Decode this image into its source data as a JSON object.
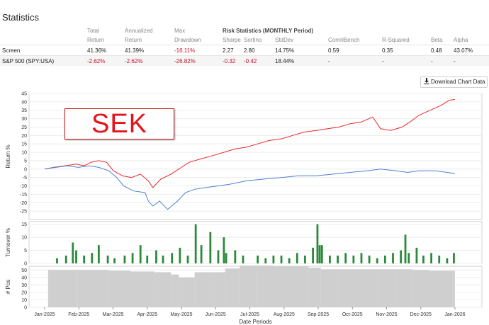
{
  "page": {
    "title": "Statistics",
    "download_button": "Download Chart Data"
  },
  "stats_table": {
    "header_row1": [
      "Total",
      "Annualized",
      "Max",
      "Risk Statistics (MONTHLY Period)"
    ],
    "header_row2": [
      "Return",
      "Return",
      "Drawdown",
      "Sharpe",
      "Sortino",
      "StdDev",
      "CorrelBench",
      "R-Squared",
      "Beta",
      "Alpha"
    ],
    "rows": [
      {
        "name": "Screen",
        "values": [
          "41.36%",
          "41.39%",
          "-16.11%",
          "2.27",
          "2.80",
          "14.75%",
          "0.59",
          "0.35",
          "0.48",
          "43.07%"
        ]
      },
      {
        "name": "S&P 500 (SPY:USA)",
        "values": [
          "-2.62%",
          "-2.62%",
          "-26.82%",
          "-0.32",
          "-0.42",
          "18.44%",
          "-",
          "-",
          "-",
          "-"
        ]
      }
    ]
  },
  "watermark": "SEK",
  "colors": {
    "screen": "#e8262b",
    "benchmark": "#4f7fcf",
    "turnover": "#2a8a3a",
    "positions": "#cfcfcf",
    "negative": "#c8102e"
  },
  "chart_data": [
    {
      "type": "line",
      "ylabel": "Return %",
      "ylim": [
        -30,
        45
      ],
      "yticks": [
        -25,
        -20,
        -15,
        -10,
        -5,
        0,
        5,
        10,
        15,
        20,
        25,
        30,
        35,
        40,
        45
      ],
      "x_start": "2025-01-02",
      "x_end": "2026-01-01",
      "series": [
        {
          "name": "Screen",
          "points": [
            [
              "2025-01-02",
              0
            ],
            [
              "2025-01-10",
              1
            ],
            [
              "2025-01-20",
              2
            ],
            [
              "2025-01-30",
              3
            ],
            [
              "2025-02-06",
              2
            ],
            [
              "2025-02-12",
              4
            ],
            [
              "2025-02-19",
              5
            ],
            [
              "2025-02-26",
              4
            ],
            [
              "2025-03-04",
              -1
            ],
            [
              "2025-03-12",
              -4
            ],
            [
              "2025-03-20",
              -5
            ],
            [
              "2025-03-28",
              -3
            ],
            [
              "2025-04-04",
              -7
            ],
            [
              "2025-04-08",
              -11
            ],
            [
              "2025-04-15",
              -6
            ],
            [
              "2025-04-24",
              -3
            ],
            [
              "2025-05-01",
              0
            ],
            [
              "2025-05-10",
              4
            ],
            [
              "2025-05-20",
              6
            ],
            [
              "2025-05-31",
              8
            ],
            [
              "2025-06-10",
              10
            ],
            [
              "2025-06-20",
              12
            ],
            [
              "2025-06-30",
              13
            ],
            [
              "2025-07-10",
              15
            ],
            [
              "2025-07-20",
              17
            ],
            [
              "2025-07-31",
              18
            ],
            [
              "2025-08-10",
              20
            ],
            [
              "2025-08-20",
              22
            ],
            [
              "2025-08-31",
              23
            ],
            [
              "2025-09-10",
              24
            ],
            [
              "2025-09-20",
              25
            ],
            [
              "2025-09-30",
              27
            ],
            [
              "2025-10-10",
              28
            ],
            [
              "2025-10-20",
              31
            ],
            [
              "2025-10-27",
              24
            ],
            [
              "2025-11-05",
              23
            ],
            [
              "2025-11-15",
              25
            ],
            [
              "2025-11-22",
              28
            ],
            [
              "2025-11-30",
              32
            ],
            [
              "2025-12-10",
              35
            ],
            [
              "2025-12-20",
              38
            ],
            [
              "2025-12-27",
              41
            ],
            [
              "2026-01-01",
              41.4
            ]
          ]
        },
        {
          "name": "S&P 500 (SPY:USA)",
          "points": [
            [
              "2025-01-02",
              0
            ],
            [
              "2025-01-12",
              1
            ],
            [
              "2025-01-22",
              2
            ],
            [
              "2025-02-01",
              1
            ],
            [
              "2025-02-10",
              2
            ],
            [
              "2025-02-19",
              1
            ],
            [
              "2025-02-28",
              -1
            ],
            [
              "2025-03-07",
              -5
            ],
            [
              "2025-03-13",
              -10
            ],
            [
              "2025-03-22",
              -13
            ],
            [
              "2025-04-01",
              -14
            ],
            [
              "2025-04-04",
              -19
            ],
            [
              "2025-04-08",
              -22
            ],
            [
              "2025-04-14",
              -19
            ],
            [
              "2025-04-21",
              -24
            ],
            [
              "2025-04-30",
              -19
            ],
            [
              "2025-05-07",
              -14
            ],
            [
              "2025-05-15",
              -12
            ],
            [
              "2025-05-25",
              -11
            ],
            [
              "2025-06-05",
              -10
            ],
            [
              "2025-06-15",
              -9
            ],
            [
              "2025-06-30",
              -7
            ],
            [
              "2025-07-15",
              -6
            ],
            [
              "2025-07-31",
              -5
            ],
            [
              "2025-08-15",
              -4
            ],
            [
              "2025-08-31",
              -4
            ],
            [
              "2025-09-15",
              -3
            ],
            [
              "2025-09-30",
              -2
            ],
            [
              "2025-10-15",
              -1
            ],
            [
              "2025-10-27",
              0
            ],
            [
              "2025-11-10",
              -1
            ],
            [
              "2025-11-20",
              -2
            ],
            [
              "2025-11-30",
              -1
            ],
            [
              "2025-12-15",
              -1
            ],
            [
              "2025-12-25",
              -2
            ],
            [
              "2026-01-01",
              -2.6
            ]
          ]
        }
      ]
    },
    {
      "type": "bar",
      "ylabel": "Turnover %",
      "ylim": [
        0,
        16
      ],
      "yticks": [
        0,
        5,
        10,
        15
      ],
      "points": [
        [
          "2025-01-13",
          2
        ],
        [
          "2025-01-21",
          3
        ],
        [
          "2025-01-27",
          8
        ],
        [
          "2025-01-30",
          5
        ],
        [
          "2025-02-06",
          3
        ],
        [
          "2025-02-13",
          4
        ],
        [
          "2025-02-19",
          7
        ],
        [
          "2025-02-27",
          3
        ],
        [
          "2025-03-05",
          2
        ],
        [
          "2025-03-14",
          3
        ],
        [
          "2025-03-21",
          4
        ],
        [
          "2025-03-28",
          7
        ],
        [
          "2025-04-03",
          3
        ],
        [
          "2025-04-11",
          5
        ],
        [
          "2025-04-17",
          3
        ],
        [
          "2025-04-25",
          4
        ],
        [
          "2025-05-02",
          6
        ],
        [
          "2025-05-09",
          3
        ],
        [
          "2025-05-16",
          15
        ],
        [
          "2025-05-21",
          7
        ],
        [
          "2025-05-29",
          12
        ],
        [
          "2025-06-05",
          5
        ],
        [
          "2025-06-10",
          10
        ],
        [
          "2025-06-12",
          4
        ],
        [
          "2025-06-20",
          5
        ],
        [
          "2025-06-27",
          3
        ],
        [
          "2025-07-10",
          3
        ],
        [
          "2025-07-17",
          2
        ],
        [
          "2025-07-24",
          3
        ],
        [
          "2025-07-31",
          3
        ],
        [
          "2025-08-07",
          2
        ],
        [
          "2025-08-14",
          4
        ],
        [
          "2025-08-21",
          3
        ],
        [
          "2025-08-28",
          6
        ],
        [
          "2025-09-01",
          15
        ],
        [
          "2025-09-03",
          7
        ],
        [
          "2025-09-05",
          7
        ],
        [
          "2025-09-12",
          3
        ],
        [
          "2025-09-19",
          3
        ],
        [
          "2025-09-26",
          4
        ],
        [
          "2025-10-03",
          3
        ],
        [
          "2025-10-10",
          4
        ],
        [
          "2025-10-17",
          3
        ],
        [
          "2025-10-24",
          2
        ],
        [
          "2025-10-31",
          3
        ],
        [
          "2025-11-07",
          4
        ],
        [
          "2025-11-14",
          5
        ],
        [
          "2025-11-18",
          11
        ],
        [
          "2025-11-21",
          4
        ],
        [
          "2025-11-28",
          6
        ],
        [
          "2025-12-04",
          3
        ],
        [
          "2025-12-11",
          4
        ],
        [
          "2025-12-18",
          3
        ],
        [
          "2025-12-25",
          2
        ],
        [
          "2025-12-31",
          4
        ]
      ]
    },
    {
      "type": "bar",
      "ylabel": "# Pos",
      "xlabel": "Date Periods",
      "ylim": [
        0,
        55
      ],
      "yticks": [
        0,
        10,
        20,
        30,
        40,
        50
      ],
      "xticks": [
        "Jan-2025",
        "Feb-2025",
        "Mar-2025",
        "Apr-2025",
        "May-2025",
        "Jun-2025",
        "Jul-2025",
        "Aug-2025",
        "Sep-2025",
        "Oct-2025",
        "Nov-2025",
        "Dec-2025",
        "Jan-2026"
      ],
      "points": [
        [
          "2025-01-06",
          50
        ],
        [
          "2025-02-01",
          50
        ],
        [
          "2025-03-01",
          49
        ],
        [
          "2025-03-20",
          48
        ],
        [
          "2025-04-10",
          47
        ],
        [
          "2025-04-25",
          44
        ],
        [
          "2025-05-02",
          40
        ],
        [
          "2025-05-16",
          47
        ],
        [
          "2025-06-01",
          47
        ],
        [
          "2025-06-12",
          52
        ],
        [
          "2025-06-25",
          56
        ],
        [
          "2025-07-10",
          56
        ],
        [
          "2025-07-25",
          55
        ],
        [
          "2025-08-05",
          55
        ],
        [
          "2025-08-25",
          53
        ],
        [
          "2025-09-05",
          51
        ],
        [
          "2025-09-20",
          51
        ],
        [
          "2025-10-05",
          51
        ],
        [
          "2025-10-25",
          51
        ],
        [
          "2025-11-10",
          51
        ],
        [
          "2025-11-25",
          50
        ],
        [
          "2025-12-10",
          49
        ],
        [
          "2025-12-31",
          49
        ]
      ]
    }
  ]
}
